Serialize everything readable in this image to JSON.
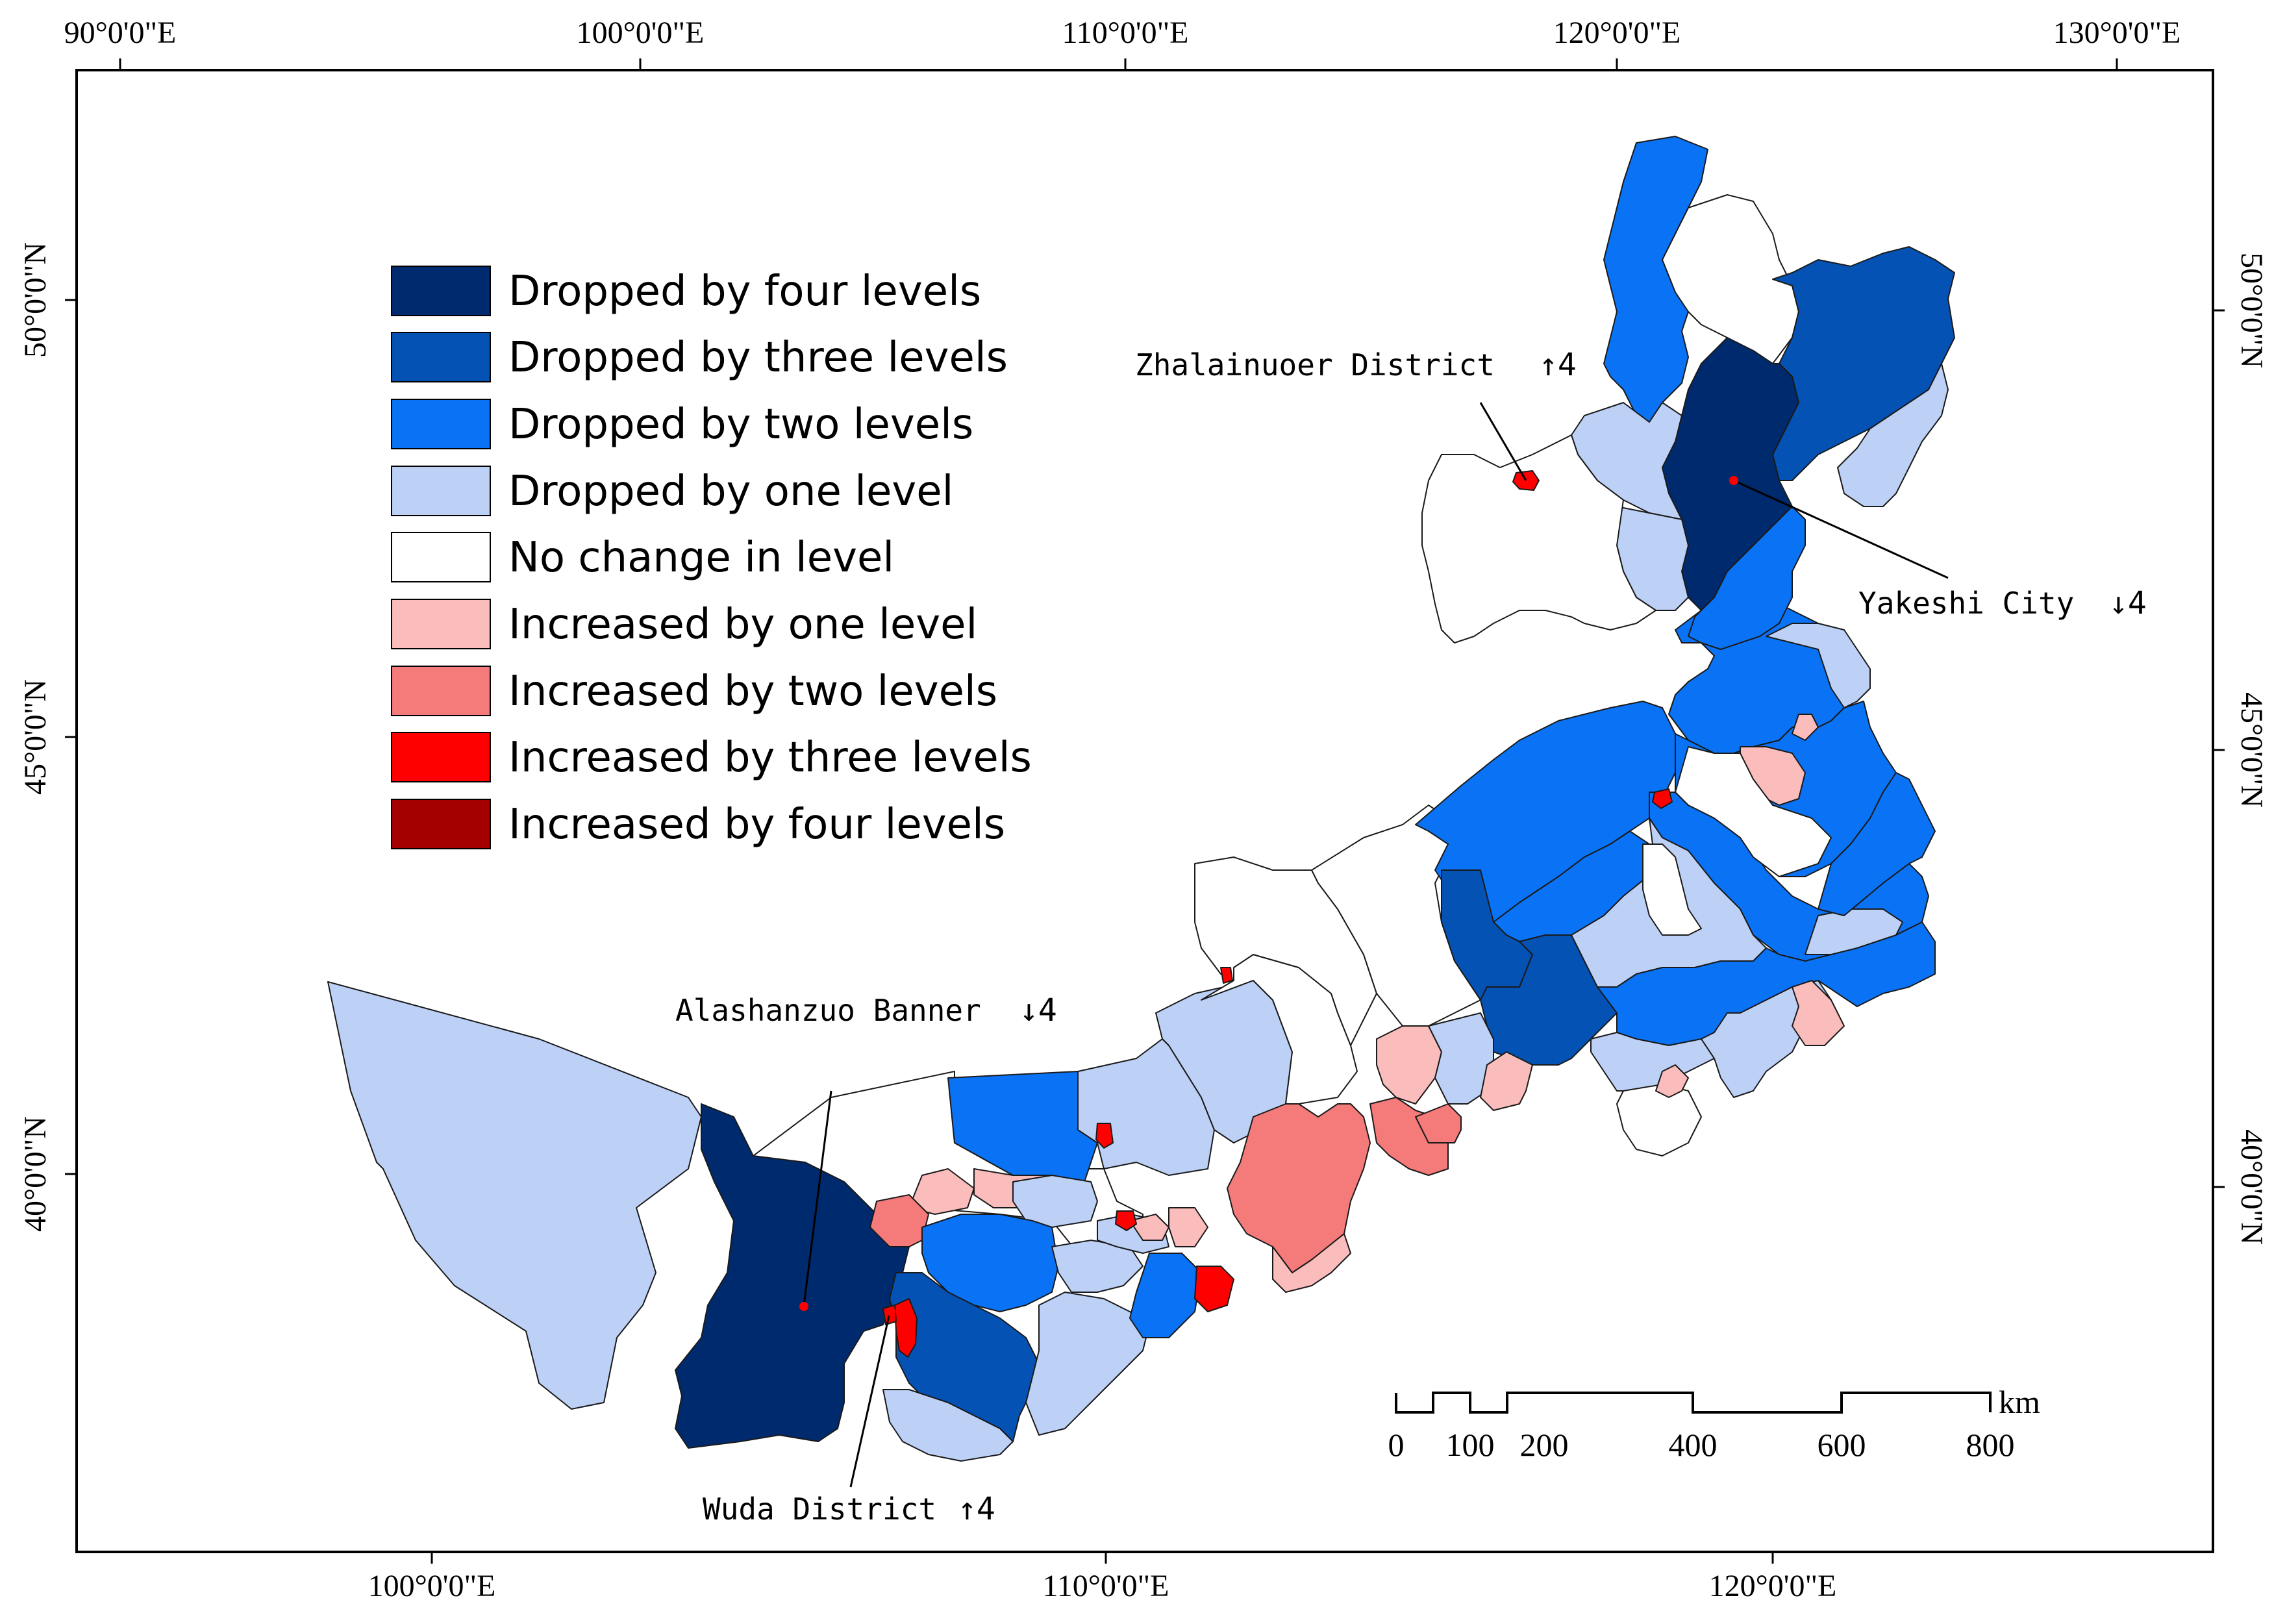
{
  "map": {
    "top_axis_labels": [
      "90°0'0\"E",
      "100°0'0\"E",
      "110°0'0\"E",
      "120°0'0\"E",
      "130°0'0\"E"
    ],
    "bottom_axis_labels": [
      "100°0'0\"E",
      "110°0'0\"E",
      "120°0'0\"E"
    ],
    "left_axis_labels": [
      "50°0'0\"N",
      "45°0'0\"N",
      "40°0'0\"N"
    ],
    "right_axis_labels": [
      "50°0'0\"N",
      "45°0'0\"N",
      "40°0'0\"N"
    ]
  },
  "legend": [
    {
      "key": "down4",
      "label": "Dropped by four levels",
      "color": "#002a6e"
    },
    {
      "key": "down3",
      "label": "Dropped by three levels",
      "color": "#0552b5"
    },
    {
      "key": "down2",
      "label": "Dropped by two levels",
      "color": "#0a73f5"
    },
    {
      "key": "down1",
      "label": "Dropped by one level",
      "color": "#bdd0f6"
    },
    {
      "key": "nochange",
      "label": "No change in level",
      "color": "#ffffff"
    },
    {
      "key": "up1",
      "label": "Increased by one level",
      "color": "#fbbcbc"
    },
    {
      "key": "up2",
      "label": "Increased by two levels",
      "color": "#f57b7b"
    },
    {
      "key": "up3",
      "label": "Increased by three levels",
      "color": "#ff0000"
    },
    {
      "key": "up4",
      "label": "Increased by four levels",
      "color": "#a50000"
    }
  ],
  "annotations": [
    {
      "name": "Zhalainuoer District",
      "symbol": "↑4"
    },
    {
      "name": "Yakeshi City",
      "symbol": "↓4"
    },
    {
      "name": "Alashanzuo Banner",
      "symbol": "↓4"
    },
    {
      "name": "Wuda District",
      "symbol": "↑4"
    }
  ],
  "scale_bar": {
    "unit": "km",
    "ticks": [
      "0",
      "100",
      "200",
      "400",
      "600",
      "800"
    ]
  }
}
